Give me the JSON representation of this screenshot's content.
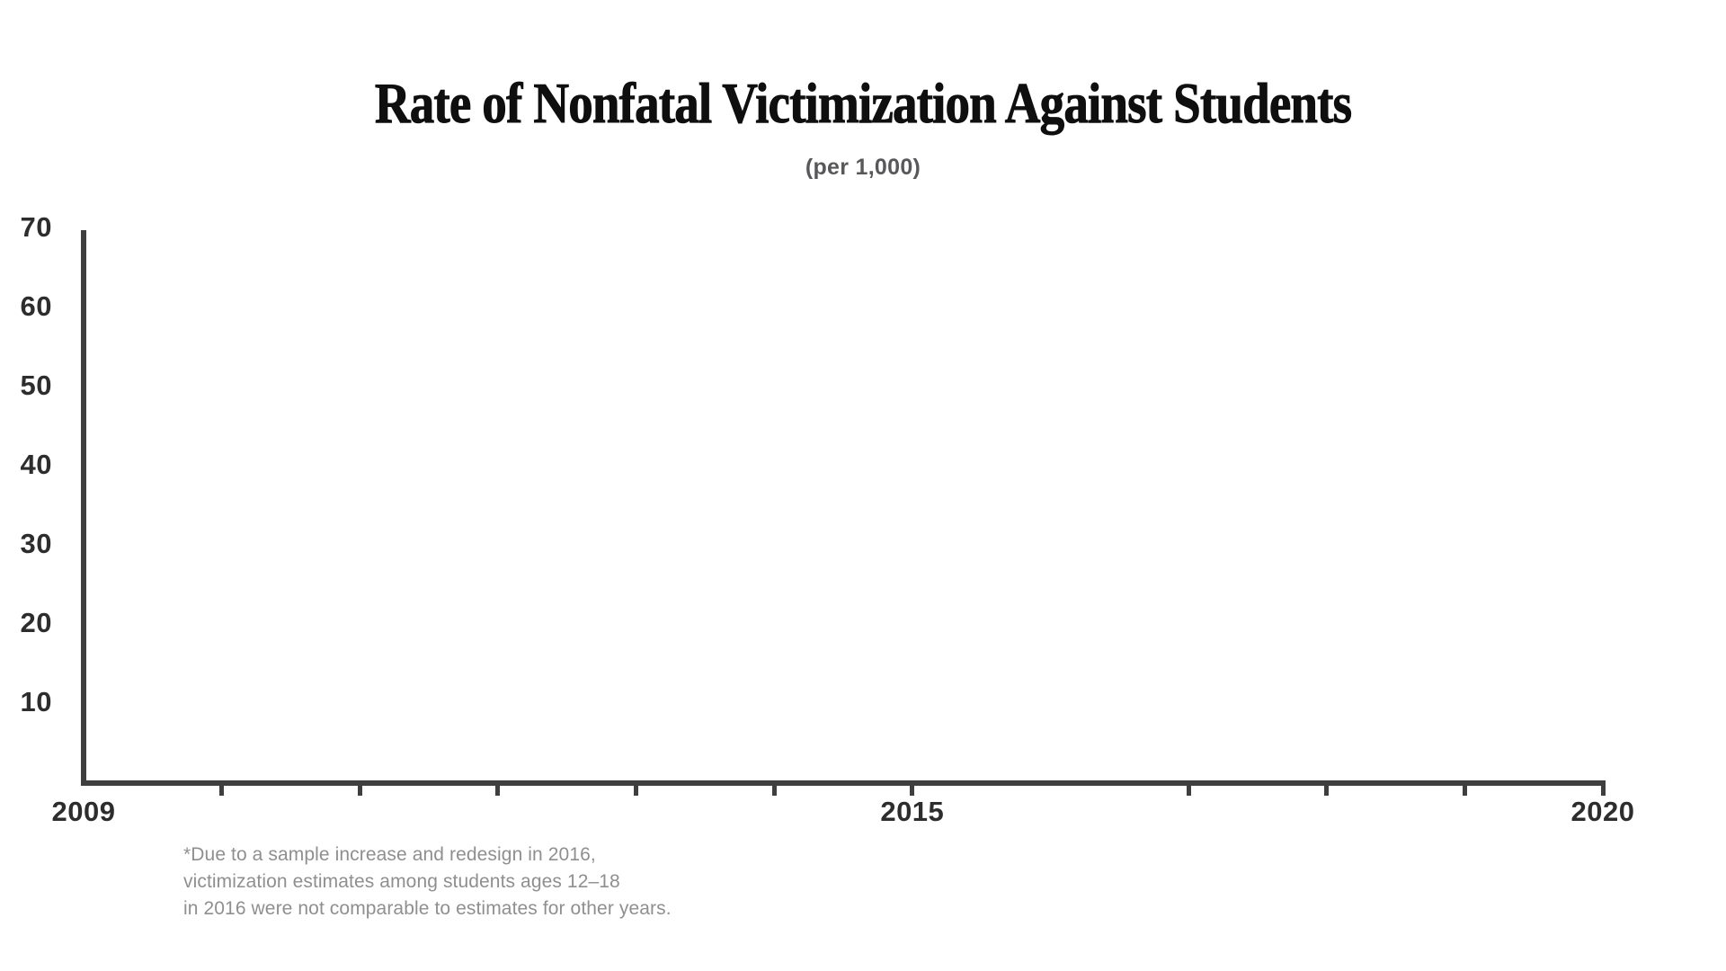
{
  "colors": {
    "background": "#ffffff",
    "axis": "#3f3f3f",
    "tick_label": "#2d2d2d",
    "title": "#0f0f0f",
    "subtitle": "#58585a",
    "footnote": "#8f8f8f"
  },
  "chart_data": {
    "type": "line",
    "title": "Rate of Nonfatal Victimization Against Students",
    "subtitle": "(per 1,000)",
    "xlabel": "",
    "ylabel": "",
    "grid": false,
    "legend": "none",
    "x_axis": {
      "min": 2009,
      "max": 2020,
      "tick_years": [
        2010,
        2011,
        2012,
        2013,
        2014,
        2015,
        2017,
        2018,
        2019,
        2020
      ],
      "missing_tick_year": 2016,
      "labeled_years": [
        "2009",
        "2015",
        "2020"
      ]
    },
    "y_axis": {
      "min": 0,
      "max": 70,
      "tick_values": [
        10,
        20,
        30,
        40,
        50,
        60,
        70
      ]
    },
    "series": [],
    "footnote_lines": [
      "*Due to a sample increase and redesign in 2016,",
      "victimization estimates among students ages 12–18",
      "in 2016 were not comparable to estimates for other years."
    ]
  }
}
